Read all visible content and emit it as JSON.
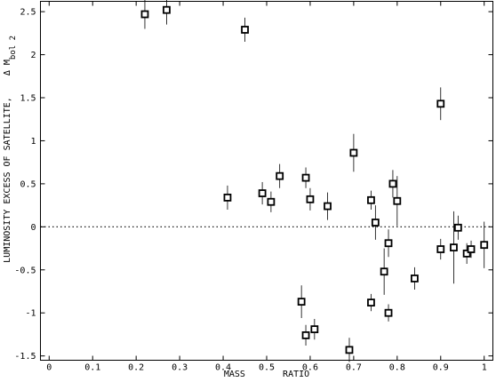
{
  "chart_data": {
    "type": "scatter",
    "title": "",
    "xlabel": "MASS       RATIO",
    "ylabel_main": "LUMINOSITY EXCESS OF SATELLITE,    Δ M",
    "ylabel_subscript": "bol 2",
    "xlim": [
      -0.02,
      1.02
    ],
    "ylim": [
      -1.55,
      2.62
    ],
    "grid": false,
    "legend": "none",
    "x_ticks": [
      0,
      0.1,
      0.2,
      0.3,
      0.4,
      0.5,
      0.6,
      0.7,
      0.8,
      0.9,
      1
    ],
    "x_tick_labels": [
      "0",
      "0.1",
      "0.2",
      "0.3",
      "0.4",
      "0.5",
      "0.6",
      "0.7",
      "0.8",
      "0.9",
      "1"
    ],
    "y_ticks": [
      -1.5,
      -1,
      -0.5,
      0,
      0.5,
      1,
      1.5,
      2,
      2.5
    ],
    "y_tick_labels": [
      "-1.5",
      "-1",
      "-0.5",
      "0",
      "0.5",
      "1",
      "1.5",
      "2",
      "2.5"
    ],
    "reference_line": {
      "y": 0,
      "style": "dotted"
    },
    "points": [
      {
        "x": 0.22,
        "y": 2.47,
        "err": 0.17
      },
      {
        "x": 0.27,
        "y": 2.52,
        "err": 0.17
      },
      {
        "x": 0.45,
        "y": 2.29,
        "err": 0.14
      },
      {
        "x": 0.41,
        "y": 0.34,
        "err": 0.14
      },
      {
        "x": 0.49,
        "y": 0.39,
        "err": 0.13
      },
      {
        "x": 0.51,
        "y": 0.29,
        "err": 0.12
      },
      {
        "x": 0.53,
        "y": 0.59,
        "err": 0.14
      },
      {
        "x": 0.58,
        "y": -0.87,
        "err": 0.19
      },
      {
        "x": 0.59,
        "y": 0.57,
        "err": 0.12
      },
      {
        "x": 0.59,
        "y": -1.26,
        "err": 0.12
      },
      {
        "x": 0.6,
        "y": 0.32,
        "err": 0.13
      },
      {
        "x": 0.61,
        "y": -1.19,
        "err": 0.12
      },
      {
        "x": 0.64,
        "y": 0.24,
        "err": 0.16
      },
      {
        "x": 0.69,
        "y": -1.43,
        "err": 0.14
      },
      {
        "x": 0.7,
        "y": 0.86,
        "err": 0.22
      },
      {
        "x": 0.74,
        "y": 0.31,
        "err": 0.11
      },
      {
        "x": 0.74,
        "y": -0.88,
        "err": 0.1
      },
      {
        "x": 0.75,
        "y": 0.05,
        "err": 0.2
      },
      {
        "x": 0.77,
        "y": -0.52,
        "err": 0.27
      },
      {
        "x": 0.78,
        "y": -0.19,
        "err": 0.16
      },
      {
        "x": 0.78,
        "y": -1.0,
        "err": 0.1
      },
      {
        "x": 0.79,
        "y": 0.5,
        "err": 0.16
      },
      {
        "x": 0.8,
        "y": 0.3,
        "err": 0.29
      },
      {
        "x": 0.84,
        "y": -0.6,
        "err": 0.13
      },
      {
        "x": 0.9,
        "y": 1.43,
        "err": 0.19
      },
      {
        "x": 0.9,
        "y": -0.26,
        "err": 0.12
      },
      {
        "x": 0.93,
        "y": -0.24,
        "err": 0.42
      },
      {
        "x": 0.94,
        "y": -0.01,
        "err": 0.14
      },
      {
        "x": 0.96,
        "y": -0.31,
        "err": 0.12
      },
      {
        "x": 0.97,
        "y": -0.26,
        "err": 0.1
      },
      {
        "x": 1.0,
        "y": -0.21,
        "err": 0.27
      }
    ]
  }
}
